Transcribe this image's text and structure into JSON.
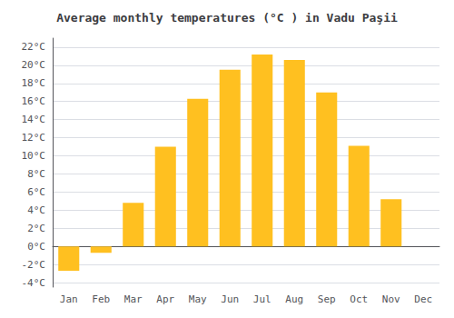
{
  "chart_data": {
    "type": "bar",
    "title": "Average monthly temperatures (°C ) in Vadu Paşii",
    "categories": [
      "Jan",
      "Feb",
      "Mar",
      "Apr",
      "May",
      "Jun",
      "Jul",
      "Aug",
      "Sep",
      "Oct",
      "Nov",
      "Dec"
    ],
    "values": [
      -2.7,
      -0.7,
      4.8,
      11.0,
      16.3,
      19.5,
      21.2,
      20.6,
      17.0,
      11.1,
      5.2,
      0.0
    ],
    "color": "#FFC020",
    "ylim": [
      -4.5,
      23
    ],
    "yticks": [
      {
        "value": -4,
        "label": "-4°C"
      },
      {
        "value": -2,
        "label": "-2°C"
      },
      {
        "value": 0,
        "label": "0°C"
      },
      {
        "value": 2,
        "label": "2°C"
      },
      {
        "value": 4,
        "label": "4°C"
      },
      {
        "value": 6,
        "label": "6°C"
      },
      {
        "value": 8,
        "label": "8°C"
      },
      {
        "value": 10,
        "label": "10°C"
      },
      {
        "value": 12,
        "label": "12°C"
      },
      {
        "value": 14,
        "label": "14°C"
      },
      {
        "value": 16,
        "label": "16°C"
      },
      {
        "value": 18,
        "label": "18°C"
      },
      {
        "value": 20,
        "label": "20°C"
      },
      {
        "value": 22,
        "label": "22°C"
      }
    ],
    "grid": true
  }
}
